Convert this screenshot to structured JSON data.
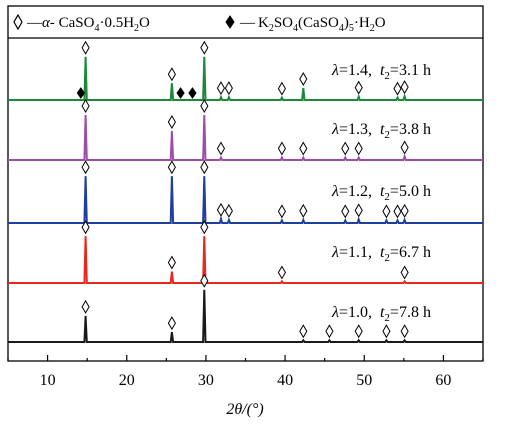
{
  "chart_data": {
    "type": "line",
    "xlabel": "2θ/(°)",
    "ylabel": "",
    "xlim": [
      5,
      65
    ],
    "xticks": [
      10,
      20,
      30,
      40,
      50,
      60
    ],
    "y_axis": "no scale, patterns offset vertically",
    "grid": false,
    "legend": {
      "position": "top",
      "entries": [
        {
          "marker": "hollow-diamond",
          "label_prefix": "—",
          "label_alpha": "α",
          "label_text": "- CaSO",
          "label_sub": "4",
          "label_tail": "·0.5H",
          "label_sub2": "2",
          "label_end": "O"
        },
        {
          "marker": "filled-diamond",
          "label_prefix": "—",
          "label_text": "K",
          "label_sub": "2",
          "label_mid": "SO",
          "label_sub2": "4",
          "label_mid2": "(CaSO",
          "label_sub3": "4",
          "label_mid3": ")",
          "label_sub4": "5",
          "label_end": "·H",
          "label_sub5": "2",
          "label_end2": "O"
        }
      ]
    },
    "series": [
      {
        "color": "#1a8a3a",
        "label": {
          "lambda": "λ",
          "lambda_value": "=1.4,",
          "t": "t",
          "t_sub": "2",
          "t_value": "=3.1 h"
        },
        "peaks": [
          {
            "x": 14.8,
            "h": 0.9
          },
          {
            "x": 25.7,
            "h": 0.35
          },
          {
            "x": 29.8,
            "h": 0.9
          },
          {
            "x": 31.9,
            "h": 0.06
          },
          {
            "x": 32.9,
            "h": 0.06
          },
          {
            "x": 39.6,
            "h": 0.05
          },
          {
            "x": 42.3,
            "h": 0.25
          },
          {
            "x": 49.3,
            "h": 0.07
          },
          {
            "x": 54.2,
            "h": 0.05
          },
          {
            "x": 55.1,
            "h": 0.08
          }
        ],
        "hollow_markers": [
          14.8,
          25.7,
          29.8,
          31.9,
          32.9,
          39.6,
          42.3,
          49.3,
          54.2,
          55.1
        ],
        "filled_markers": [
          14.2,
          26.8,
          28.3
        ]
      },
      {
        "color": "#9b4ea8",
        "label": {
          "lambda": "λ",
          "lambda_value": "=1.3,",
          "t": "t",
          "t_sub": "2",
          "t_value": "=3.8 h"
        },
        "peaks": [
          {
            "x": 14.8,
            "h": 0.9
          },
          {
            "x": 25.7,
            "h": 0.58
          },
          {
            "x": 29.8,
            "h": 0.9
          },
          {
            "x": 31.9,
            "h": 0.05
          },
          {
            "x": 39.6,
            "h": 0.05
          },
          {
            "x": 42.3,
            "h": 0.05
          },
          {
            "x": 47.6,
            "h": 0.05
          },
          {
            "x": 49.3,
            "h": 0.05
          },
          {
            "x": 55.1,
            "h": 0.07
          }
        ],
        "hollow_markers": [
          14.8,
          25.7,
          29.8,
          31.9,
          39.6,
          42.3,
          47.6,
          49.3,
          55.1
        ],
        "filled_markers": []
      },
      {
        "color": "#1f3f9f",
        "label": {
          "lambda": "λ",
          "lambda_value": "=1.2,",
          "t": "t",
          "t_sub": "2",
          "t_value": "=5.0 h"
        },
        "peaks": [
          {
            "x": 14.8,
            "h": 0.9
          },
          {
            "x": 25.7,
            "h": 0.9
          },
          {
            "x": 29.8,
            "h": 0.9
          },
          {
            "x": 31.9,
            "h": 0.08
          },
          {
            "x": 32.9,
            "h": 0.06
          },
          {
            "x": 39.6,
            "h": 0.05
          },
          {
            "x": 42.3,
            "h": 0.06
          },
          {
            "x": 47.6,
            "h": 0.05
          },
          {
            "x": 49.3,
            "h": 0.07
          },
          {
            "x": 52.8,
            "h": 0.05
          },
          {
            "x": 54.2,
            "h": 0.05
          },
          {
            "x": 55.1,
            "h": 0.06
          }
        ],
        "hollow_markers": [
          14.8,
          25.7,
          29.8,
          31.9,
          32.9,
          39.6,
          42.3,
          47.6,
          49.3,
          52.8,
          54.2,
          55.1
        ],
        "filled_markers": []
      },
      {
        "color": "#e8281e",
        "label": {
          "lambda": "λ",
          "lambda_value": "=1.1,",
          "t": "t",
          "t_sub": "2",
          "t_value": "=6.7 h"
        },
        "peaks": [
          {
            "x": 14.8,
            "h": 0.9
          },
          {
            "x": 25.7,
            "h": 0.22
          },
          {
            "x": 29.8,
            "h": 0.9
          },
          {
            "x": 39.6,
            "h": 0.03
          },
          {
            "x": 55.1,
            "h": 0.03
          }
        ],
        "hollow_markers": [
          14.8,
          25.7,
          29.8,
          39.6,
          55.1
        ],
        "filled_markers": []
      },
      {
        "color": "#1a1a1a",
        "label": {
          "lambda": "λ",
          "lambda_value": "=1.0,",
          "t": "t",
          "t_sub": "2",
          "t_value": "=7.8 h"
        },
        "peaks": [
          {
            "x": 14.8,
            "h": 0.45
          },
          {
            "x": 25.7,
            "h": 0.17
          },
          {
            "x": 29.8,
            "h": 0.9
          },
          {
            "x": 42.3,
            "h": 0.03
          },
          {
            "x": 45.6,
            "h": 0.03
          },
          {
            "x": 49.3,
            "h": 0.03
          },
          {
            "x": 52.8,
            "h": 0.03
          },
          {
            "x": 55.1,
            "h": 0.03
          }
        ],
        "hollow_markers": [
          14.8,
          25.7,
          29.8,
          42.3,
          45.6,
          49.3,
          52.8,
          55.1
        ],
        "filled_markers": []
      }
    ]
  }
}
